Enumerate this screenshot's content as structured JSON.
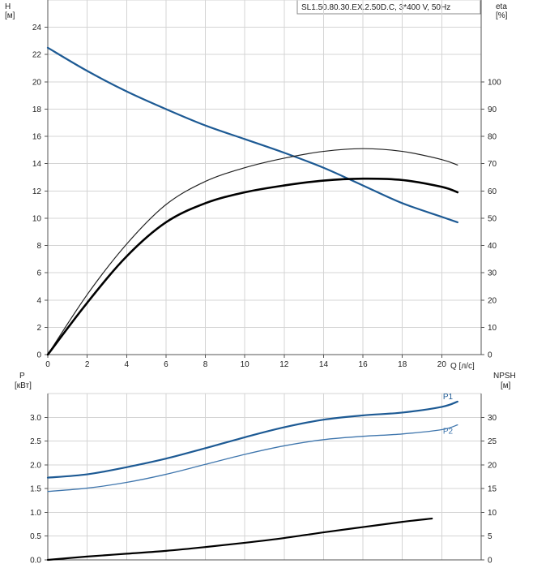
{
  "chart_data": [
    {
      "type": "line",
      "title": "SL1.50.80.30.EX.2.50D.C, 3*400 V, 50Hz",
      "xlabel": "Q [л/с]",
      "ylabel": "H",
      "ylabel_unit": "[м]",
      "y2label": "eta",
      "y2label_unit": "[%]",
      "xlim": [
        0,
        22
      ],
      "ylim": [
        0,
        26
      ],
      "y2lim": [
        0,
        130
      ],
      "x_ticks": [
        0,
        2,
        4,
        6,
        8,
        10,
        12,
        14,
        16,
        18,
        20
      ],
      "y_ticks": [
        0,
        2,
        4,
        6,
        8,
        10,
        12,
        14,
        16,
        18,
        20,
        22,
        24
      ],
      "y2_ticks": [
        0,
        10,
        20,
        30,
        40,
        50,
        60,
        70,
        80,
        90,
        100
      ],
      "grid": true,
      "series": [
        {
          "axis": "left",
          "color": "#1d5a94",
          "width": 2.2,
          "x": [
            0,
            2,
            4,
            6,
            8,
            10,
            12,
            14,
            16,
            18,
            20,
            20.8
          ],
          "y": [
            22.5,
            20.8,
            19.3,
            18.0,
            16.8,
            15.8,
            14.8,
            13.7,
            12.4,
            11.1,
            10.1,
            9.7
          ]
        },
        {
          "axis": "right",
          "color": "#222222",
          "width": 1.2,
          "x": [
            0,
            2,
            4,
            6,
            8,
            10,
            12,
            14,
            16,
            18,
            20,
            20.8
          ],
          "y": [
            0,
            22.0,
            40.5,
            55.0,
            63.5,
            68.5,
            72.0,
            74.5,
            75.5,
            74.5,
            71.5,
            69.5
          ]
        },
        {
          "axis": "right",
          "color": "#000000",
          "width": 2.6,
          "x": [
            0,
            2,
            4,
            6,
            8,
            10,
            12,
            14,
            16,
            18,
            20,
            20.8
          ],
          "y": [
            0,
            19.0,
            36.0,
            48.5,
            55.5,
            59.5,
            62.0,
            63.8,
            64.5,
            64.0,
            61.5,
            59.5
          ]
        }
      ]
    },
    {
      "type": "line",
      "xlabel": "",
      "ylabel": "P",
      "ylabel_unit": "[кВт]",
      "y2label": "NPSH",
      "y2label_unit": "[м]",
      "xlim": [
        0,
        22
      ],
      "ylim": [
        0,
        3.5
      ],
      "y2lim": [
        0,
        35
      ],
      "y_ticks": [
        0.0,
        0.5,
        1.0,
        1.5,
        2.0,
        2.5,
        3.0
      ],
      "y_tick_labels": [
        "0.0",
        "0.5",
        "1.0",
        "1.5",
        "2.0",
        "2.5",
        "3.0"
      ],
      "y2_ticks": [
        0,
        5,
        10,
        15,
        20,
        25,
        30
      ],
      "grid": true,
      "series": [
        {
          "name": "P1",
          "axis": "left",
          "color": "#1d5a94",
          "width": 2.2,
          "x": [
            0,
            2,
            4,
            6,
            8,
            10,
            12,
            14,
            16,
            18,
            20,
            20.8
          ],
          "y": [
            1.73,
            1.8,
            1.95,
            2.13,
            2.35,
            2.58,
            2.79,
            2.95,
            3.04,
            3.1,
            3.22,
            3.33
          ]
        },
        {
          "name": "P2",
          "axis": "left",
          "color": "#3f76ad",
          "width": 1.3,
          "x": [
            0,
            2,
            4,
            6,
            8,
            10,
            12,
            14,
            16,
            18,
            20,
            20.8
          ],
          "y": [
            1.44,
            1.51,
            1.63,
            1.8,
            2.01,
            2.22,
            2.4,
            2.53,
            2.6,
            2.65,
            2.74,
            2.84
          ]
        },
        {
          "axis": "right",
          "color": "#000000",
          "width": 2.2,
          "x": [
            0,
            2,
            4,
            6,
            8,
            10,
            12,
            14,
            16,
            18,
            19.5
          ],
          "y": [
            0,
            0.7,
            1.3,
            1.9,
            2.7,
            3.6,
            4.6,
            5.8,
            6.9,
            8.0,
            8.7
          ]
        }
      ]
    }
  ]
}
